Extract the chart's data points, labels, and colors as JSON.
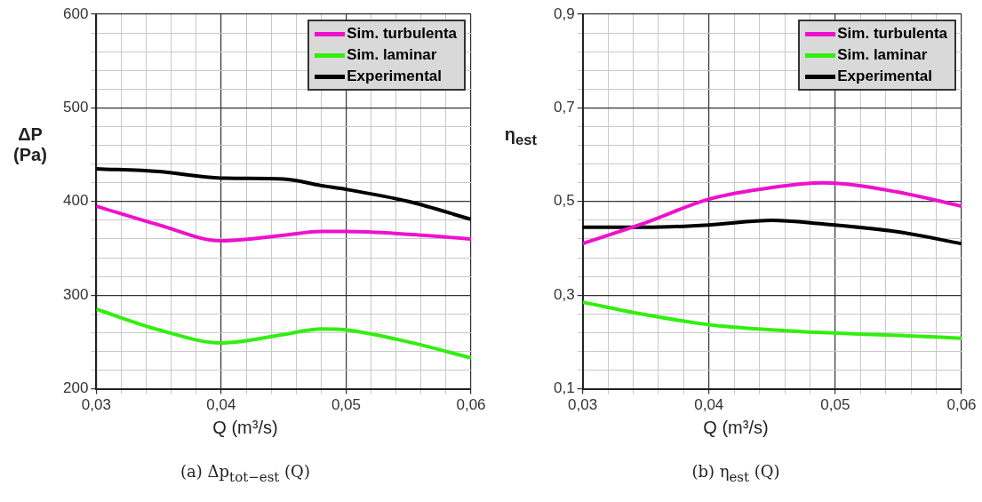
{
  "chart_data": [
    {
      "type": "line",
      "ylabel": "ΔP (Pa)",
      "xlabel": "Q (m³/s)",
      "annotations": [
        "(a) Δp$_{tot−est}$ (Q)"
      ],
      "x": [
        0.03,
        0.035,
        0.04,
        0.045,
        0.048,
        0.05,
        0.055,
        0.06
      ],
      "series": [
        {
          "name": "Sim. turbulenta",
          "color": "#ee11cc",
          "values": [
            395,
            375,
            358,
            364,
            368,
            368,
            365,
            360
          ]
        },
        {
          "name": "Sim. laminar",
          "color": "#33ee11",
          "values": [
            285,
            263,
            249,
            258,
            264,
            263,
            250,
            233
          ]
        },
        {
          "name": "Experimental",
          "color": "#000000",
          "values": [
            435,
            432,
            425,
            424,
            417,
            413,
            400,
            381
          ]
        }
      ],
      "xlim": [
        0.03,
        0.06
      ],
      "xticks": [
        {
          "value": 0.03,
          "label": "0,03"
        },
        {
          "value": 0.032,
          "label": null
        },
        {
          "value": 0.034,
          "label": null
        },
        {
          "value": 0.036,
          "label": null
        },
        {
          "value": 0.038,
          "label": null
        },
        {
          "value": 0.04,
          "label": "0,04"
        },
        {
          "value": 0.042,
          "label": null
        },
        {
          "value": 0.044,
          "label": null
        },
        {
          "value": 0.046,
          "label": null
        },
        {
          "value": 0.048,
          "label": null
        },
        {
          "value": 0.05,
          "label": "0,05"
        },
        {
          "value": 0.052,
          "label": null
        },
        {
          "value": 0.054,
          "label": null
        },
        {
          "value": 0.056,
          "label": null
        },
        {
          "value": 0.058,
          "label": null
        },
        {
          "value": 0.06,
          "label": "0,06"
        }
      ],
      "ylim": [
        200,
        600
      ],
      "yticks": [
        200,
        {
          "value": 220,
          "label": null
        },
        {
          "value": 240,
          "label": null
        },
        {
          "value": 260,
          "label": null
        },
        {
          "value": 280,
          "label": null
        },
        300,
        {
          "value": 320,
          "label": null
        },
        {
          "value": 340,
          "label": null
        },
        {
          "value": 360,
          "label": null
        },
        {
          "value": 380,
          "label": null
        },
        400,
        {
          "value": 420,
          "label": null
        },
        {
          "value": 440,
          "label": null
        },
        {
          "value": 460,
          "label": null
        },
        {
          "value": 480,
          "label": null
        },
        500,
        {
          "value": 520,
          "label": null
        },
        {
          "value": 540,
          "label": null
        },
        {
          "value": 560,
          "label": null
        },
        {
          "value": 580,
          "label": null
        },
        600
      ],
      "grid": true,
      "legend": "top right"
    },
    {
      "type": "line",
      "ylabel": "η$_{est}$",
      "xlabel": "Q (m³/s)",
      "annotations": [
        "(b) η$_{est}$ (Q)"
      ],
      "x": [
        0.03,
        0.035,
        0.04,
        0.045,
        0.049,
        0.055,
        0.06
      ],
      "series": [
        {
          "name": "Sim. turbulenta",
          "color": "#ee11cc",
          "values": [
            0.41,
            0.455,
            0.505,
            0.53,
            0.54,
            0.52,
            0.49
          ]
        },
        {
          "name": "Sim. laminar",
          "color": "#33ee11",
          "values": [
            0.285,
            0.258,
            0.237,
            0.226,
            0.22,
            0.214,
            0.208
          ]
        },
        {
          "name": "Experimental",
          "color": "#000000",
          "values": [
            0.445,
            0.445,
            0.45,
            0.46,
            0.452,
            0.435,
            0.41
          ]
        }
      ],
      "xlim": [
        0.03,
        0.06
      ],
      "xticks": [
        {
          "value": 0.03,
          "label": "0,03"
        },
        {
          "value": 0.032,
          "label": null
        },
        {
          "value": 0.034,
          "label": null
        },
        {
          "value": 0.036,
          "label": null
        },
        {
          "value": 0.038,
          "label": null
        },
        {
          "value": 0.04,
          "label": "0,04"
        },
        {
          "value": 0.042,
          "label": null
        },
        {
          "value": 0.044,
          "label": null
        },
        {
          "value": 0.046,
          "label": null
        },
        {
          "value": 0.048,
          "label": null
        },
        {
          "value": 0.05,
          "label": "0,05"
        },
        {
          "value": 0.052,
          "label": null
        },
        {
          "value": 0.054,
          "label": null
        },
        {
          "value": 0.056,
          "label": null
        },
        {
          "value": 0.058,
          "label": null
        },
        {
          "value": 0.06,
          "label": "0,06"
        }
      ],
      "ylim": [
        0.1,
        0.9
      ],
      "yticks": [
        {
          "value": 0.1,
          "label": "0,1"
        },
        {
          "value": 0.14,
          "label": null
        },
        {
          "value": 0.18,
          "label": null
        },
        {
          "value": 0.22,
          "label": null
        },
        {
          "value": 0.26,
          "label": null
        },
        {
          "value": 0.3,
          "label": "0,3"
        },
        {
          "value": 0.34,
          "label": null
        },
        {
          "value": 0.38,
          "label": null
        },
        {
          "value": 0.42,
          "label": null
        },
        {
          "value": 0.46,
          "label": null
        },
        {
          "value": 0.5,
          "label": "0,5"
        },
        {
          "value": 0.54,
          "label": null
        },
        {
          "value": 0.58,
          "label": null
        },
        {
          "value": 0.62,
          "label": null
        },
        {
          "value": 0.66,
          "label": null
        },
        {
          "value": 0.7,
          "label": "0,7"
        },
        {
          "value": 0.74,
          "label": null
        },
        {
          "value": 0.78,
          "label": null
        },
        {
          "value": 0.82,
          "label": null
        },
        {
          "value": 0.86,
          "label": null
        },
        {
          "value": 0.9,
          "label": "0,9"
        }
      ],
      "grid": true,
      "legend": "top right"
    }
  ]
}
